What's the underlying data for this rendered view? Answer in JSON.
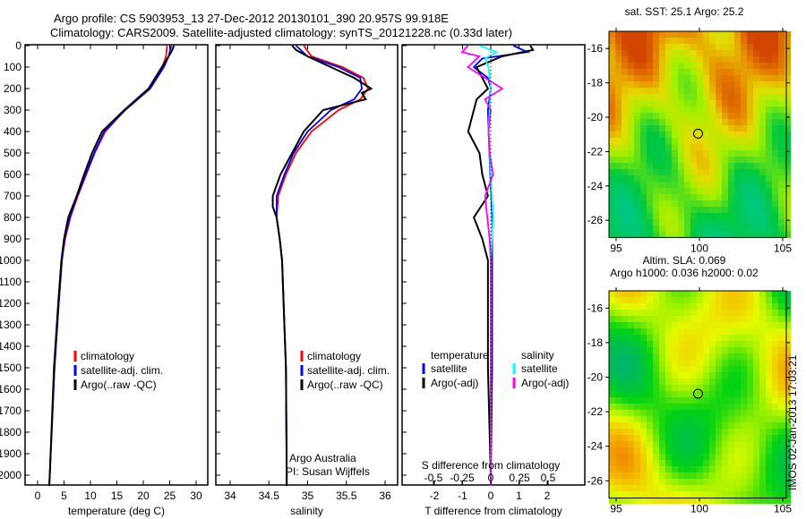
{
  "title_line1": "Argo profile: CS 5903953_13 27-Dec-2012 20130101_390 20.957S 99.918E",
  "title_line2": "Climatology: CARS2009. Satellite-adjusted climatology: synTS_20121228.nc (0.33d later)",
  "chart_data": [
    {
      "type": "line",
      "name": "temperature-profile",
      "xlabel": "temperature (deg C)",
      "xlim": [
        -2,
        32
      ],
      "ylim": [
        2050,
        0
      ],
      "xticks": [
        0,
        5,
        10,
        15,
        20,
        25,
        30
      ],
      "yticks": [
        0,
        100,
        200,
        300,
        400,
        500,
        600,
        700,
        800,
        900,
        1000,
        1100,
        1200,
        1300,
        1400,
        1500,
        1600,
        1700,
        1800,
        1900,
        2000
      ],
      "legend": [
        "climatology",
        "satellite-adj. clim.",
        "Argo(..raw -QC)"
      ],
      "series": [
        {
          "name": "climatology",
          "color": "#ff0000",
          "depth": [
            0,
            50,
            100,
            200,
            300,
            400,
            500,
            600,
            700,
            800,
            900,
            1000,
            1200,
            1500,
            2000,
            2050
          ],
          "values": [
            24.5,
            24.3,
            23.6,
            21,
            16.5,
            12.8,
            10.8,
            9.2,
            7.6,
            6.2,
            5.2,
            4.6,
            4.0,
            3.2,
            2.3,
            2.2
          ]
        },
        {
          "name": "satellite-adj. clim.",
          "color": "#0000ff",
          "depth": [
            0,
            50,
            100,
            200,
            300,
            400,
            500,
            600,
            700,
            800,
            900,
            1000,
            1200,
            1500,
            2000,
            2050
          ],
          "values": [
            25.3,
            24.8,
            23.9,
            21.3,
            16.6,
            12.6,
            10.7,
            9.1,
            7.5,
            6.1,
            5.1,
            4.6,
            4.0,
            3.2,
            2.3,
            2.2
          ]
        },
        {
          "name": "Argo(..raw -QC)",
          "color": "#000000",
          "depth": [
            0,
            20,
            50,
            100,
            200,
            300,
            400,
            500,
            600,
            700,
            800,
            900,
            1000,
            1200,
            1500,
            2000,
            2050
          ],
          "values": [
            25.8,
            25.5,
            24.8,
            23.5,
            21,
            16.4,
            12.2,
            10.3,
            8.8,
            7.4,
            5.8,
            5.0,
            4.5,
            3.9,
            3.1,
            2.3,
            2.2
          ]
        }
      ]
    },
    {
      "type": "line",
      "name": "salinity-profile",
      "xlabel": "salinity",
      "xlim": [
        33.8,
        36.2
      ],
      "ylim": [
        2050,
        0
      ],
      "xticks": [
        34,
        34.5,
        35,
        35.5,
        36
      ],
      "legend": [
        "climatology",
        "satellite-adj. clim.",
        "Argo(..raw -QC)"
      ],
      "annotation": [
        "Argo Australia",
        "PI: Susan Wijffels"
      ],
      "series": [
        {
          "name": "climatology",
          "color": "#ff0000",
          "depth": [
            0,
            50,
            100,
            150,
            200,
            250,
            300,
            400,
            500,
            600,
            700,
            800,
            900,
            1000,
            1500,
            2000,
            2050
          ],
          "values": [
            34.95,
            35.05,
            35.45,
            35.72,
            35.78,
            35.68,
            35.4,
            35.05,
            34.85,
            34.72,
            34.62,
            34.6,
            34.64,
            34.67,
            34.72,
            34.73,
            34.73
          ]
        },
        {
          "name": "satellite-adj. clim.",
          "color": "#0000ff",
          "depth": [
            0,
            50,
            100,
            150,
            200,
            250,
            300,
            400,
            500,
            600,
            700,
            800,
            900,
            1000,
            1500,
            2000,
            2050
          ],
          "values": [
            34.85,
            35.0,
            35.4,
            35.68,
            35.7,
            35.6,
            35.3,
            35.0,
            34.82,
            34.7,
            34.6,
            34.6,
            34.64,
            34.67,
            34.72,
            34.73,
            34.73
          ]
        },
        {
          "name": "Argo(..raw -QC)",
          "color": "#000000",
          "depth": [
            0,
            20,
            50,
            100,
            150,
            200,
            220,
            250,
            300,
            400,
            500,
            600,
            700,
            750,
            800,
            900,
            1000,
            1500,
            2000,
            2050
          ],
          "values": [
            34.8,
            34.85,
            35.0,
            35.3,
            35.6,
            35.82,
            35.7,
            35.75,
            35.2,
            34.95,
            34.8,
            34.65,
            34.55,
            34.55,
            34.6,
            34.64,
            34.67,
            34.72,
            34.73,
            34.73
          ]
        }
      ]
    },
    {
      "type": "line",
      "name": "difference-profile",
      "xlabel": "T difference from climatology",
      "x2label": "S difference from climatology",
      "xlim": [
        -2.2,
        2.6
      ],
      "x2lim": [
        -0.55,
        0.65
      ],
      "xticks": [
        -2,
        -1,
        0,
        1,
        2
      ],
      "x2ticks": [
        -0.5,
        -0.25,
        0,
        0.25,
        0.5
      ],
      "legend": {
        "temperature_title": "temperature",
        "salinity_title": "salinity",
        "t_sat": "satellite",
        "t_argo": "Argo(-adj)",
        "s_sat": "satellite",
        "s_argo": "Argo(-adj)"
      },
      "series": [
        {
          "name": "T satellite",
          "color": "#0000ff",
          "axis": "T",
          "depth": [
            0,
            30,
            60,
            100,
            150,
            200,
            300,
            500,
            800,
            1000,
            1500,
            2050
          ],
          "values": [
            0.8,
            1.3,
            -0.3,
            -0.6,
            -0.1,
            0.0,
            -0.1,
            -0.05,
            0.05,
            0.05,
            0.05,
            0.0
          ]
        },
        {
          "name": "T Argo(-adj)",
          "color": "#000000",
          "axis": "T",
          "depth": [
            0,
            20,
            50,
            100,
            150,
            200,
            250,
            300,
            400,
            500,
            600,
            700,
            800,
            900,
            1000,
            1200,
            1500,
            2000,
            2050
          ],
          "values": [
            1.4,
            1.5,
            0.4,
            -0.5,
            -0.3,
            -0.1,
            -0.5,
            -0.6,
            -0.8,
            -0.4,
            -0.3,
            -0.1,
            -0.6,
            -0.3,
            -0.1,
            -0.1,
            -0.1,
            0.0,
            0.0
          ]
        },
        {
          "name": "S satellite",
          "color": "#00ffff",
          "axis": "S",
          "depth": [
            0,
            30,
            60,
            100,
            200,
            400,
            600,
            800,
            1000,
            1500,
            2050
          ],
          "values": [
            -0.1,
            0.05,
            -0.05,
            -0.02,
            0.0,
            -0.02,
            0.0,
            0.02,
            0.0,
            0.0,
            0.0
          ]
        },
        {
          "name": "S Argo(-adj)",
          "color": "#ff00ff",
          "axis": "S",
          "depth": [
            0,
            30,
            50,
            100,
            150,
            200,
            250,
            300,
            400,
            500,
            600,
            700,
            800,
            900,
            1000,
            1500,
            2050
          ],
          "values": [
            -0.2,
            -0.25,
            -0.1,
            -0.2,
            -0.05,
            0.1,
            -0.05,
            0.0,
            -0.02,
            -0.01,
            0.02,
            -0.05,
            -0.03,
            -0.01,
            0.0,
            0.0,
            0.0
          ]
        }
      ]
    },
    {
      "type": "heatmap",
      "name": "sst-map",
      "title": "sat. SST: 25.1  Argo: 25.2",
      "xticks": [
        95,
        100,
        105
      ],
      "yticks": [
        -16,
        -18,
        -20,
        -22,
        -24,
        -26
      ],
      "xlim": [
        94.3,
        105.3
      ],
      "ylim": [
        -27,
        -15
      ],
      "marker": [
        99.918,
        -20.957
      ]
    },
    {
      "type": "heatmap",
      "name": "sla-map",
      "title1": "Altim. SLA: 0.069",
      "title2": "Argo h1000: 0.036 h2000: 0.02",
      "xticks": [
        95,
        100,
        105
      ],
      "yticks": [
        -16,
        -18,
        -20,
        -22,
        -24,
        -26
      ],
      "xlim": [
        94.3,
        105.3
      ],
      "ylim": [
        -27,
        -15
      ],
      "marker": [
        99.918,
        -20.957
      ]
    }
  ],
  "footer_stamp": "IMOS 02-Jan-2013 17:03:21"
}
